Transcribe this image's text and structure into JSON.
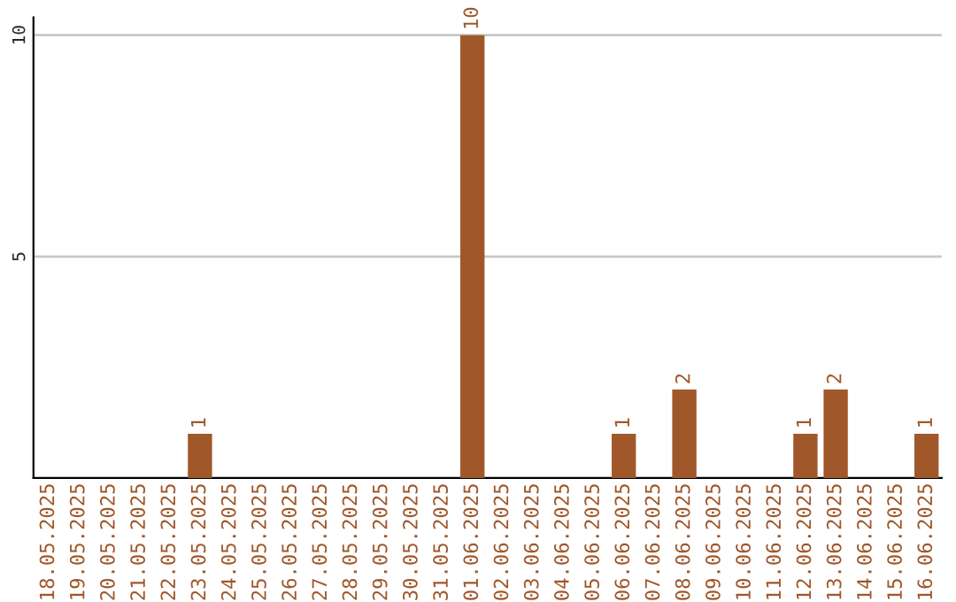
{
  "chart_data": {
    "type": "bar",
    "categories": [
      "18.05.2025",
      "19.05.2025",
      "20.05.2025",
      "21.05.2025",
      "22.05.2025",
      "23.05.2025",
      "24.05.2025",
      "25.05.2025",
      "26.05.2025",
      "27.05.2025",
      "28.05.2025",
      "29.05.2025",
      "30.05.2025",
      "31.05.2025",
      "01.06.2025",
      "02.06.2025",
      "03.06.2025",
      "04.06.2025",
      "05.06.2025",
      "06.06.2025",
      "07.06.2025",
      "08.06.2025",
      "09.06.2025",
      "10.06.2025",
      "11.06.2025",
      "12.06.2025",
      "13.06.2025",
      "14.06.2025",
      "15.06.2025",
      "16.06.2025"
    ],
    "values": [
      0,
      0,
      0,
      0,
      0,
      1,
      0,
      0,
      0,
      0,
      0,
      0,
      0,
      0,
      10,
      0,
      0,
      0,
      0,
      1,
      0,
      2,
      0,
      0,
      0,
      1,
      2,
      0,
      0,
      1
    ],
    "value_labels": [
      null,
      null,
      null,
      null,
      null,
      "1",
      null,
      null,
      null,
      null,
      null,
      null,
      null,
      null,
      "10",
      null,
      null,
      null,
      null,
      "1",
      null,
      "2",
      null,
      null,
      null,
      "1",
      "2",
      null,
      null,
      "1"
    ],
    "color": "#a0572a",
    "ylim": [
      0,
      10.4
    ],
    "yticks": [
      5,
      10
    ],
    "grid": "y"
  }
}
